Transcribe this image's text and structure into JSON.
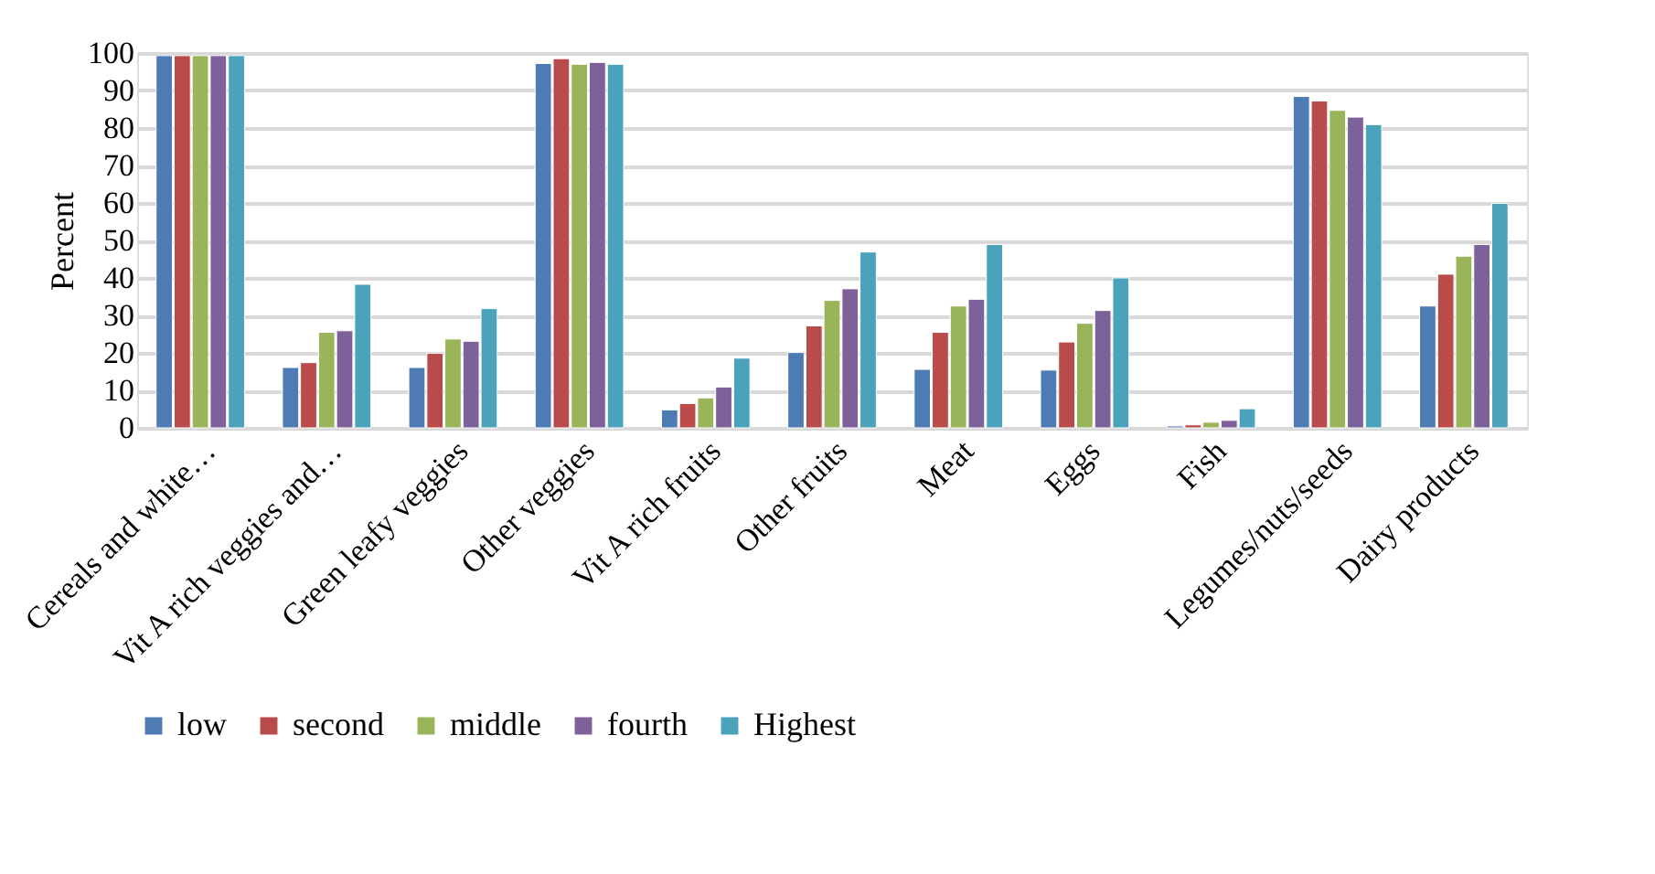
{
  "chart_data": {
    "type": "bar",
    "ylabel": "Percent",
    "categories": [
      "Cereals and white…",
      "Vit A rich veggies and…",
      "Green leafy veggies",
      "Other veggies",
      "Vit A rich fruits",
      "Other fruits",
      "Meat",
      "Eggs",
      "Fish",
      "Legumes/nuts/seeds",
      "Dairy products"
    ],
    "series": [
      {
        "name": "low",
        "color": "#4f7bb5",
        "values": [
          99.3,
          16.1,
          16.1,
          97.2,
          4.8,
          20.1,
          15.6,
          15.4,
          0.5,
          88.4,
          32.5
        ]
      },
      {
        "name": "second",
        "color": "#b94c4a",
        "values": [
          99.3,
          17.4,
          19.9,
          98.5,
          6.5,
          27.2,
          25.5,
          22.9,
          0.8,
          87.2,
          41
        ]
      },
      {
        "name": "middle",
        "color": "#9ab45a",
        "values": [
          99.3,
          25.5,
          23.7,
          97,
          8,
          34,
          32.5,
          27.9,
          1.5,
          84.7,
          45.8
        ]
      },
      {
        "name": "fourth",
        "color": "#7c619a",
        "values": [
          99.3,
          25.9,
          23.1,
          97.5,
          10.9,
          37.1,
          34.3,
          31.3,
          2,
          82.9,
          48.9
        ]
      },
      {
        "name": "Highest",
        "color": "#4ba3bb",
        "values": [
          99.3,
          38.3,
          31.8,
          97,
          18.6,
          46.9,
          48.9,
          40,
          5.1,
          80.9,
          59.9
        ]
      }
    ],
    "ylim": [
      0,
      100
    ],
    "yticks": [
      0,
      10,
      20,
      30,
      40,
      50,
      60,
      70,
      80,
      90,
      100
    ],
    "grid": "y",
    "legend": "bottom"
  }
}
